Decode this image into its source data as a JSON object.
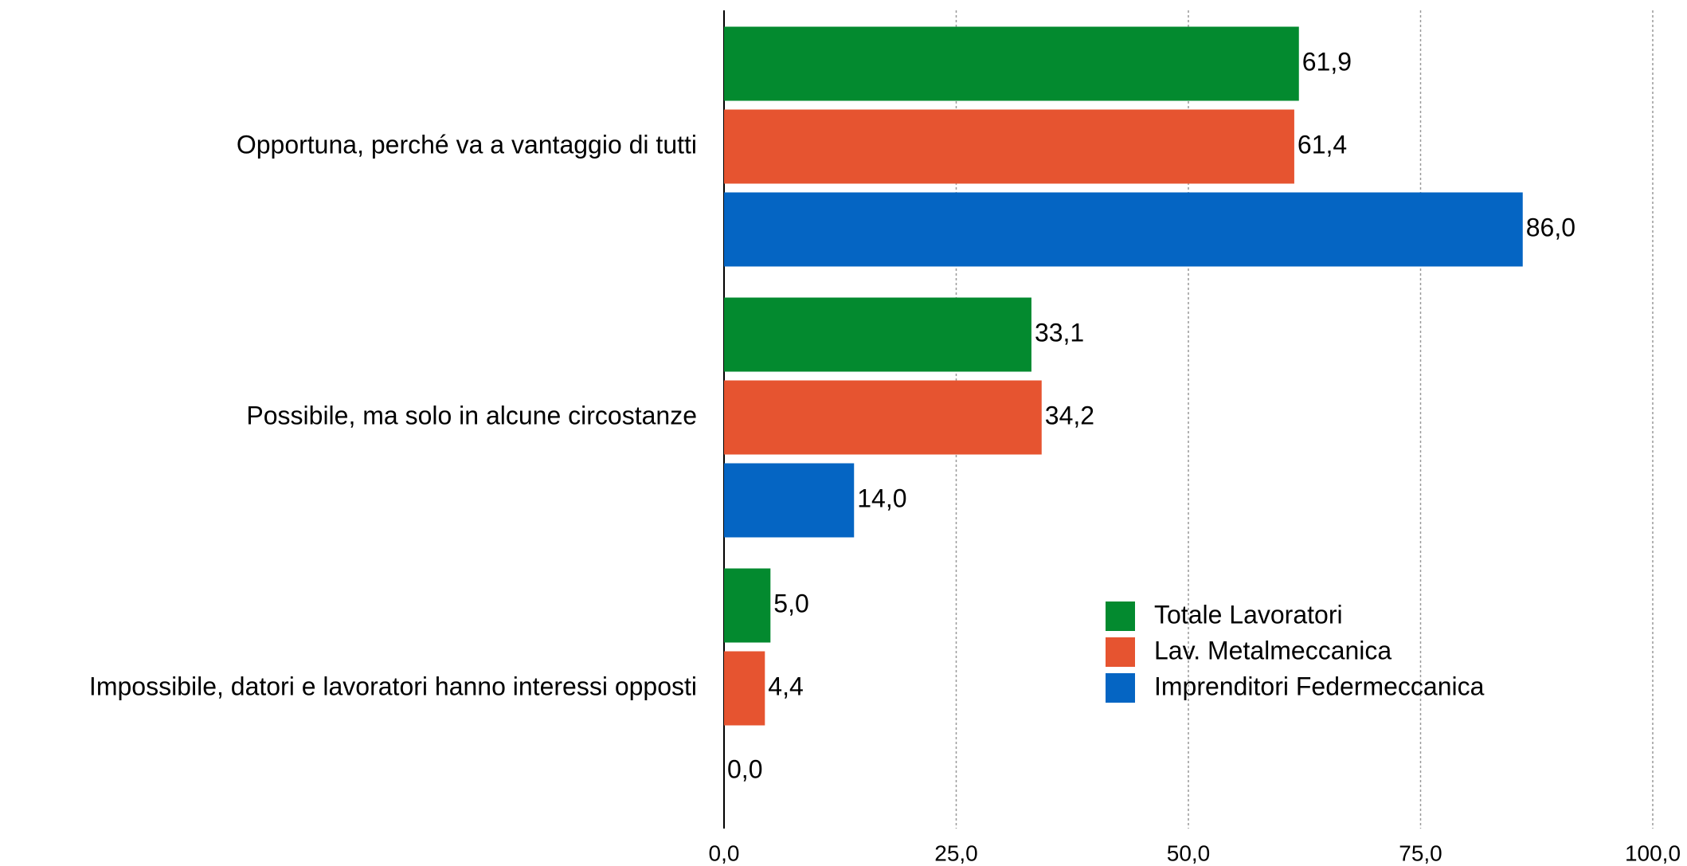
{
  "chart_data": {
    "type": "bar",
    "orientation": "horizontal",
    "categories": [
      "Opportuna, perché va a vantaggio di tutti",
      "Possibile, ma solo in alcune circostanze",
      "Impossibile, datori e lavoratori hanno interessi opposti"
    ],
    "series": [
      {
        "name": "Totale Lavoratori",
        "color": "#038a2f",
        "values": [
          61.9,
          33.1,
          5.0
        ],
        "value_labels": [
          "61,9",
          "33,1",
          "5,0"
        ]
      },
      {
        "name": "Lav. Metalmeccanica",
        "color": "#e65430",
        "values": [
          61.4,
          34.2,
          4.4
        ],
        "value_labels": [
          "61,4",
          "34,2",
          "4,4"
        ]
      },
      {
        "name": "Imprenditori Federmeccanica",
        "color": "#0565c3",
        "values": [
          86.0,
          14.0,
          0.0
        ],
        "value_labels": [
          "86,0",
          "14,0",
          "0,0"
        ]
      }
    ],
    "xlim": [
      0,
      100
    ],
    "xticks": [
      {
        "value": 0,
        "label": "0,0"
      },
      {
        "value": 25,
        "label": "25,0"
      },
      {
        "value": 50,
        "label": "50,0"
      },
      {
        "value": 75,
        "label": "75,0"
      },
      {
        "value": 100,
        "label": "100,0"
      }
    ],
    "grid": true,
    "legend": "lower right"
  }
}
